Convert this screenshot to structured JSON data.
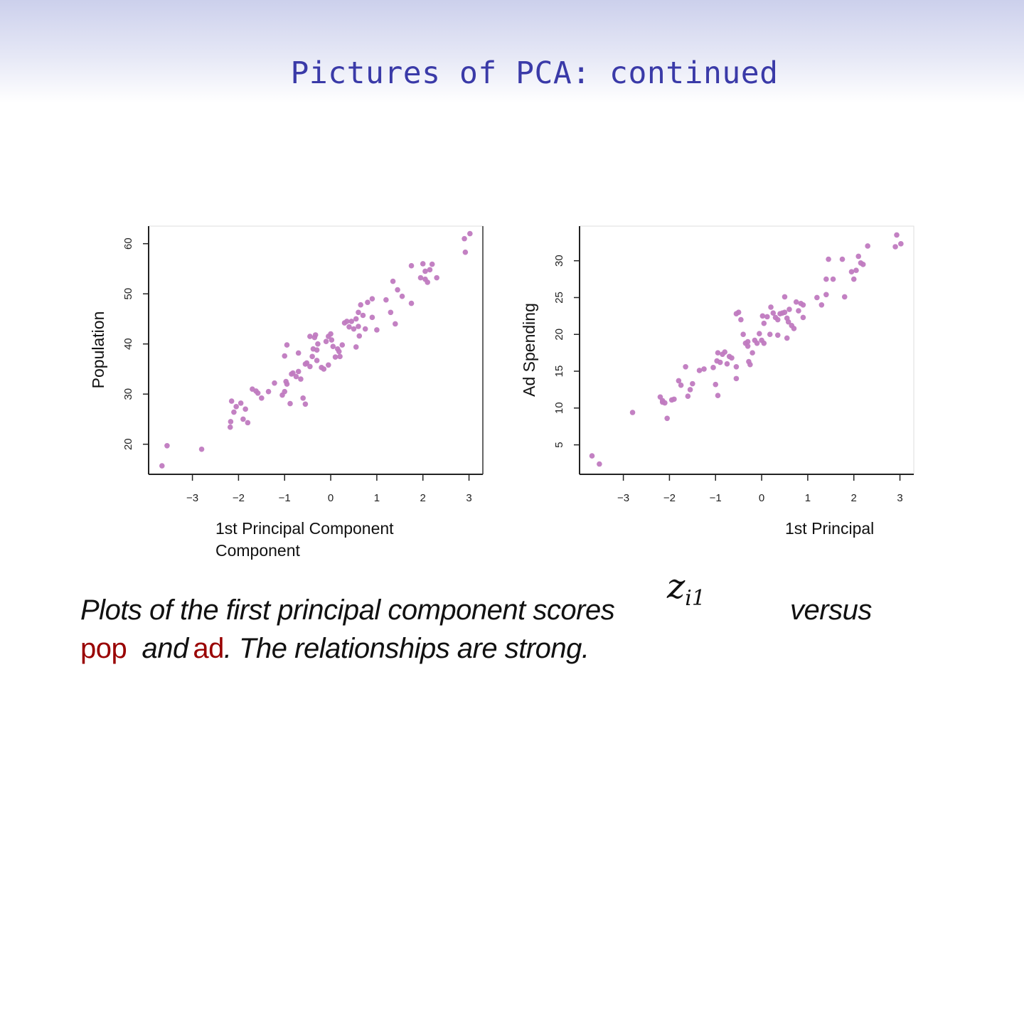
{
  "slide": {
    "title": "Pictures of PCA:  continued"
  },
  "left_plot": {
    "xlabel_line1": "1st Principal Component",
    "xlabel_line2": "Component"
  },
  "right_plot": {
    "xlabel_line1": "1st Principal"
  },
  "caption": {
    "part1": "Plots of the first principal component scores",
    "symbol_z": "z",
    "symbol_sub": "i1",
    "part2": "versus",
    "var1": "pop",
    "part3": "and",
    "var2": "ad",
    "part4": ".  The relationships are  strong."
  },
  "colors": {
    "points": "#c07ac0",
    "title": "#3a3aa8",
    "highlight": "#990000"
  },
  "chart_data": [
    {
      "type": "scatter",
      "title": "",
      "xlabel": "1st Principal Component",
      "ylabel": "Population",
      "xticks": [
        "−3",
        "−2",
        "−1",
        "0",
        "1",
        "2",
        "3"
      ],
      "yticks": [
        "20",
        "30",
        "40",
        "50",
        "60"
      ],
      "xlim": [
        -3.95,
        3.3
      ],
      "ylim": [
        14,
        63.5
      ],
      "x": [
        -3.66,
        -3.55,
        -2.8,
        -2.18,
        -2.17,
        -2.15,
        -2.1,
        -2.05,
        -1.95,
        -1.9,
        -1.85,
        -1.8,
        -1.7,
        -1.62,
        -1.58,
        -1.5,
        -1.35,
        -1.22,
        -1.05,
        -1.0,
        -0.97,
        -0.95,
        -0.88,
        -0.85,
        -0.82,
        -0.75,
        -0.7,
        -0.65,
        -0.6,
        -0.55,
        -0.55,
        -0.52,
        -0.45,
        -0.4,
        -0.38,
        -0.35,
        -0.33,
        -0.3,
        -0.28,
        -0.2,
        -0.15,
        -0.1,
        -0.05,
        0.0,
        0.02,
        0.05,
        0.15,
        0.18,
        0.2,
        0.25,
        0.3,
        0.35,
        0.4,
        0.45,
        0.5,
        0.55,
        0.55,
        0.6,
        0.62,
        0.65,
        0.7,
        0.75,
        0.8,
        0.9,
        0.9,
        1.2,
        1.3,
        1.35,
        1.4,
        1.45,
        1.55,
        1.75,
        1.75,
        1.95,
        2.0,
        2.05,
        2.05,
        2.1,
        2.15,
        2.2,
        2.3,
        2.9,
        2.92,
        3.02,
        -0.95,
        -1.0,
        -0.3,
        -0.45,
        -0.7,
        -0.05,
        0.1,
        0.6,
        1.0
      ],
      "y": [
        15.7,
        19.7,
        19.0,
        23.4,
        24.5,
        28.6,
        26.4,
        27.5,
        28.2,
        25.0,
        27.0,
        24.3,
        31.0,
        30.6,
        30.2,
        29.2,
        30.5,
        32.2,
        29.8,
        30.5,
        32.5,
        32.0,
        28.1,
        34.0,
        34.2,
        33.5,
        34.5,
        33.0,
        29.2,
        28.0,
        36.0,
        36.2,
        35.5,
        37.5,
        39.0,
        41.3,
        41.8,
        36.7,
        40.0,
        35.3,
        35.0,
        40.5,
        41.5,
        42.0,
        40.8,
        39.5,
        39.0,
        38.5,
        37.5,
        39.8,
        44.2,
        44.5,
        43.4,
        44.5,
        43.0,
        39.4,
        45.0,
        46.3,
        41.6,
        47.8,
        45.7,
        43.0,
        48.3,
        49.0,
        45.3,
        48.8,
        46.3,
        52.5,
        44.0,
        50.8,
        49.5,
        55.6,
        48.1,
        53.2,
        56.0,
        54.5,
        52.9,
        52.3,
        54.8,
        55.9,
        53.2,
        61.0,
        58.3,
        62.0,
        39.8,
        37.6,
        38.8,
        41.5,
        38.2,
        35.8,
        37.4,
        43.5,
        42.8
      ]
    },
    {
      "type": "scatter",
      "title": "",
      "xlabel": "1st Principal",
      "ylabel": "Ad Spending",
      "xticks": [
        "−3",
        "−2",
        "−1",
        "0",
        "1",
        "2",
        "3"
      ],
      "yticks": [
        "5",
        "10",
        "15",
        "20",
        "25",
        "30"
      ],
      "xlim": [
        -3.95,
        3.3
      ],
      "ylim": [
        1.0,
        34.7
      ],
      "x": [
        -3.68,
        -3.52,
        -2.8,
        -2.2,
        -2.15,
        -2.1,
        -2.05,
        -1.95,
        -1.9,
        -1.8,
        -1.75,
        -1.65,
        -1.6,
        -1.55,
        -1.5,
        -1.35,
        -1.25,
        -1.05,
        -1.0,
        -0.95,
        -0.9,
        -0.85,
        -0.8,
        -0.75,
        -0.7,
        -0.65,
        -0.55,
        -0.55,
        -0.5,
        -0.45,
        -0.4,
        -0.35,
        -0.3,
        -0.28,
        -0.25,
        -0.2,
        -0.15,
        -0.1,
        -0.05,
        0.0,
        0.02,
        0.05,
        0.12,
        0.18,
        0.2,
        0.25,
        0.3,
        0.35,
        0.4,
        0.45,
        0.5,
        0.55,
        0.58,
        0.6,
        0.65,
        0.7,
        0.75,
        0.8,
        0.85,
        0.9,
        1.2,
        1.3,
        1.4,
        1.45,
        1.55,
        1.75,
        1.8,
        1.95,
        2.0,
        2.05,
        2.1,
        2.15,
        2.2,
        2.3,
        2.9,
        2.93,
        3.02,
        -0.95,
        -0.55,
        -0.3,
        0.05,
        0.35,
        0.55,
        0.9,
        1.4,
        0.5,
        -2.15,
        -0.97
      ],
      "y": [
        3.5,
        2.4,
        9.4,
        11.5,
        11.0,
        10.7,
        8.6,
        11.1,
        11.2,
        13.7,
        13.1,
        15.6,
        11.6,
        12.5,
        13.3,
        15.1,
        15.3,
        15.5,
        13.2,
        11.7,
        16.2,
        17.3,
        17.6,
        16.0,
        17.0,
        16.8,
        15.6,
        14.0,
        23.0,
        22.0,
        20.0,
        18.8,
        19.0,
        16.3,
        15.9,
        17.5,
        19.2,
        18.8,
        20.1,
        19.2,
        22.5,
        21.5,
        22.4,
        20.0,
        23.7,
        22.9,
        22.3,
        22.0,
        22.8,
        22.9,
        25.1,
        22.2,
        21.7,
        23.4,
        21.2,
        20.8,
        24.4,
        23.2,
        24.2,
        22.3,
        25.0,
        24.0,
        27.5,
        30.2,
        27.5,
        30.2,
        25.1,
        28.5,
        27.5,
        28.7,
        30.6,
        29.7,
        29.5,
        32.0,
        31.9,
        33.5,
        32.3,
        17.5,
        22.8,
        18.4,
        18.8,
        19.9,
        19.5,
        24.0,
        25.4,
        23.0,
        10.8,
        16.4
      ]
    }
  ]
}
